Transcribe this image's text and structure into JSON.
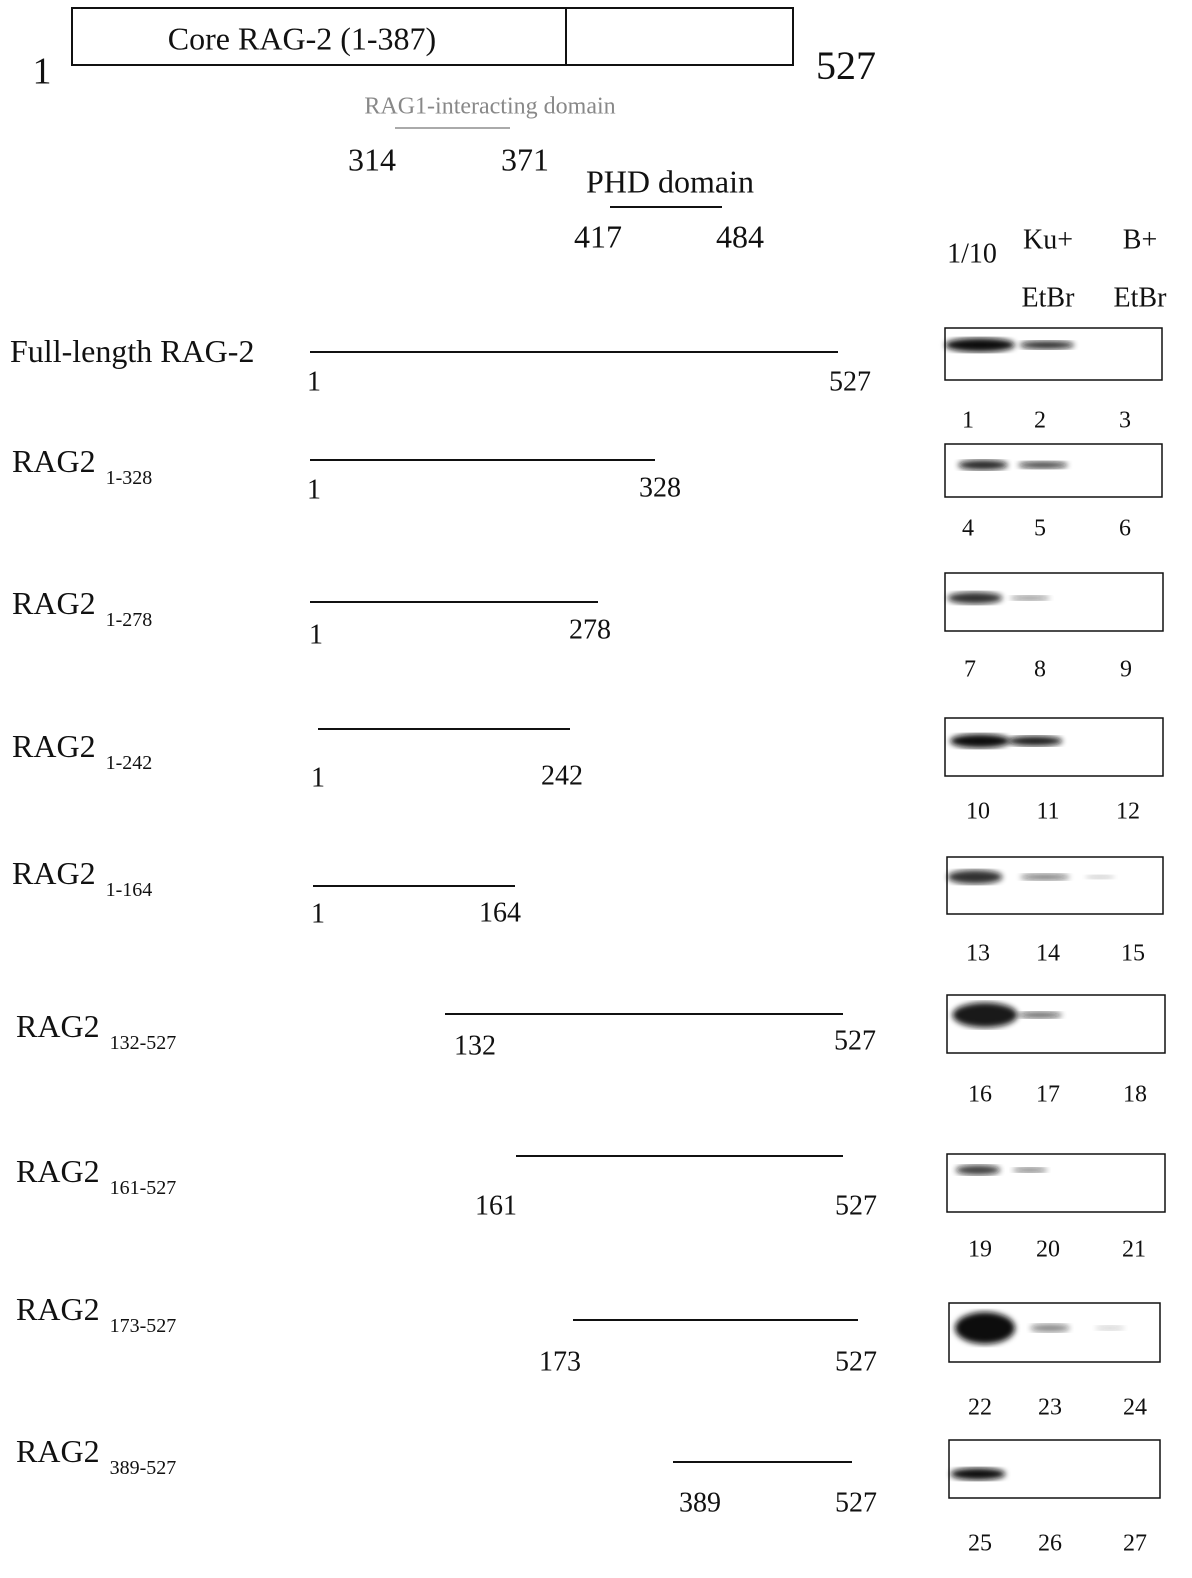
{
  "header": {
    "start": "1",
    "end": "527",
    "core_label": "Core RAG-2 (1-387)",
    "rag1_domain": "RAG1-interacting domain",
    "rag1_start": "314",
    "rag1_end": "371",
    "phd_domain": "PHD domain",
    "phd_start": "417",
    "phd_end": "484"
  },
  "lane_headers": [
    {
      "line1": "1/10"
    },
    {
      "line1": "Ku+",
      "line2": "EtBr"
    },
    {
      "line1": "B+",
      "line2": "EtBr"
    }
  ],
  "constructs": [
    {
      "name": "Full-length RAG-2",
      "start": "1",
      "end": "527",
      "lanes": [
        "1",
        "2",
        "3"
      ]
    },
    {
      "name": "RAG2",
      "range": "1-328",
      "start": "1",
      "end": "328",
      "lanes": [
        "4",
        "5",
        "6"
      ]
    },
    {
      "name": "RAG2",
      "range": "1-278",
      "start": "1",
      "end": "278",
      "lanes": [
        "7",
        "8",
        "9"
      ]
    },
    {
      "name": "RAG2",
      "range": "1-242",
      "start": "1",
      "end": "242",
      "lanes": [
        "10",
        "11",
        "12"
      ]
    },
    {
      "name": "RAG2",
      "range": "1-164",
      "start": "1",
      "end": "164",
      "lanes": [
        "13",
        "14",
        "15"
      ]
    },
    {
      "name": "RAG2",
      "range": "132-527",
      "start": "132",
      "end": "527",
      "lanes": [
        "16",
        "17",
        "18"
      ]
    },
    {
      "name": "RAG2",
      "range": "161-527",
      "start": "161",
      "end": "527",
      "lanes": [
        "19",
        "20",
        "21"
      ]
    },
    {
      "name": "RAG2",
      "range": "173-527",
      "start": "173",
      "end": "527",
      "lanes": [
        "22",
        "23",
        "24"
      ]
    },
    {
      "name": "RAG2",
      "range": "389-527",
      "start": "389",
      "end": "527",
      "lanes": [
        "25",
        "26",
        "27"
      ]
    }
  ]
}
